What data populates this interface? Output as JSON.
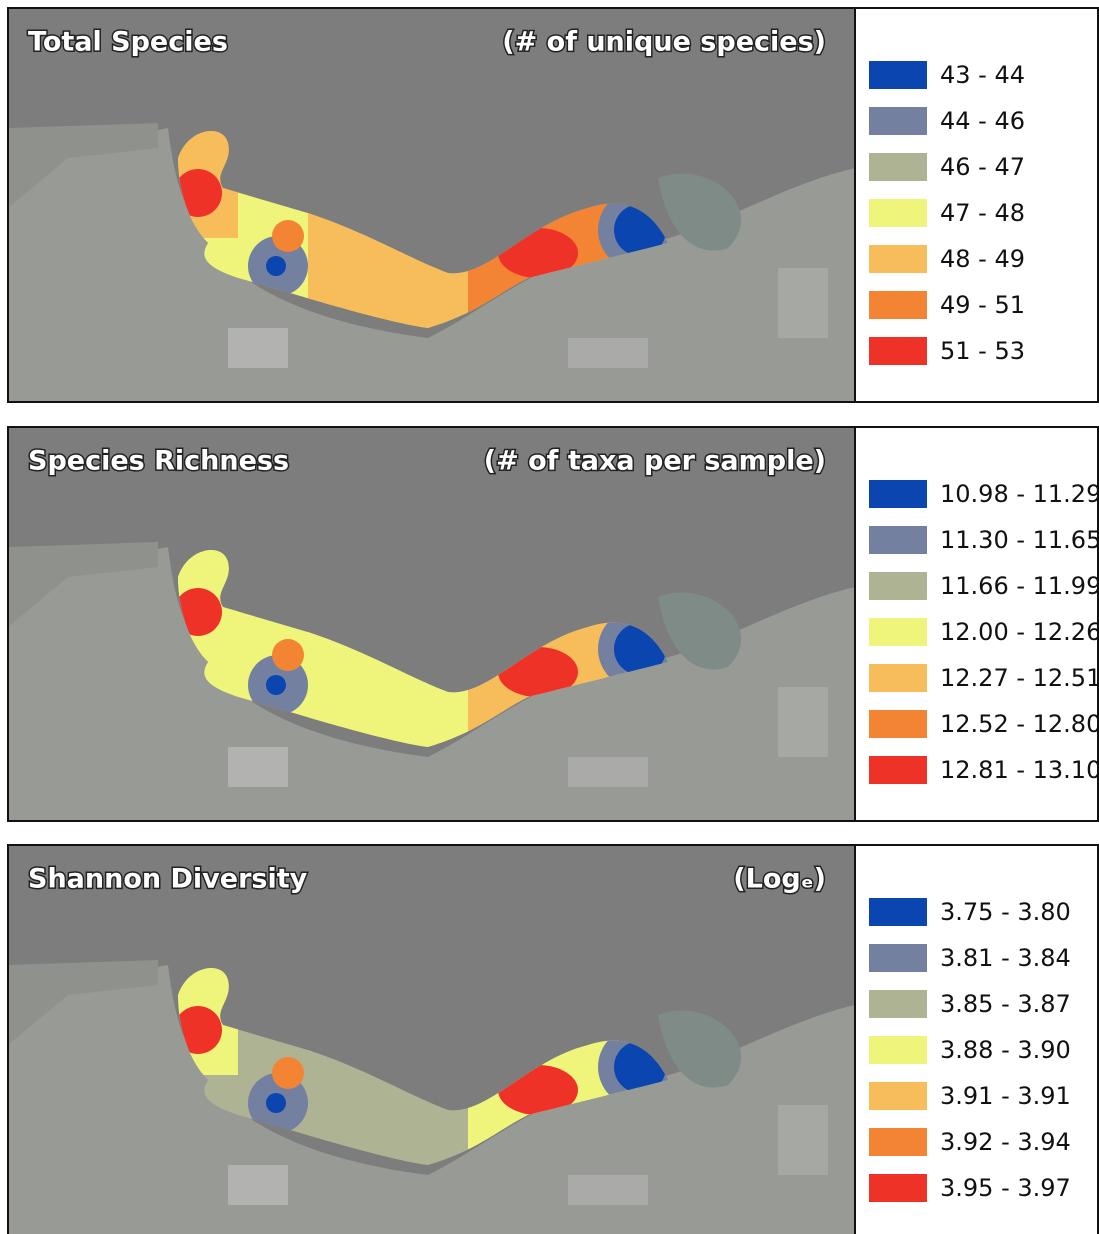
{
  "panels": [
    {
      "title": "Total Species",
      "unit": "(# of unique species)",
      "legend": [
        {
          "label": "43 - 44",
          "color": "#0b45b0"
        },
        {
          "label": "44 - 46",
          "color": "#7480a0"
        },
        {
          "label": "46 - 47",
          "color": "#aeb394"
        },
        {
          "label": "47 - 48",
          "color": "#eef57a"
        },
        {
          "label": "48 - 49",
          "color": "#f6bd5a"
        },
        {
          "label": "49 - 51",
          "color": "#f38434"
        },
        {
          "label": "51 - 53",
          "color": "#ee3228"
        }
      ]
    },
    {
      "title": "Species Richness",
      "unit": "(# of taxa per sample)",
      "legend": [
        {
          "label": "10.98 - 11.29",
          "color": "#0b45b0"
        },
        {
          "label": "11.30 - 11.65",
          "color": "#7480a0"
        },
        {
          "label": "11.66 - 11.99",
          "color": "#aeb394"
        },
        {
          "label": "12.00 - 12.26",
          "color": "#eef57a"
        },
        {
          "label": "12.27 - 12.51",
          "color": "#f6bd5a"
        },
        {
          "label": "12.52 - 12.80",
          "color": "#f38434"
        },
        {
          "label": "12.81 - 13.10",
          "color": "#ee3228"
        }
      ]
    },
    {
      "title": "Shannon Diversity",
      "unit": "(Logₑ)",
      "legend": [
        {
          "label": "3.75 - 3.80",
          "color": "#0b45b0"
        },
        {
          "label": "3.81 - 3.84",
          "color": "#7480a0"
        },
        {
          "label": "3.85 - 3.87",
          "color": "#aeb394"
        },
        {
          "label": "3.88 - 3.90",
          "color": "#eef57a"
        },
        {
          "label": "3.91 - 3.91",
          "color": "#f6bd5a"
        },
        {
          "label": "3.92 - 3.94",
          "color": "#f38434"
        },
        {
          "label": "3.95 - 3.97",
          "color": "#ee3228"
        }
      ]
    }
  ]
}
